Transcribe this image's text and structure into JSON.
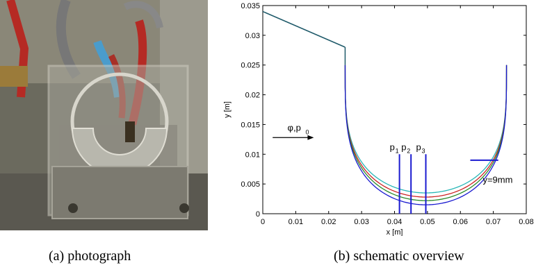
{
  "captions": {
    "a": "(a)  photograph",
    "b": "(b)  schematic overview"
  },
  "chart_data": {
    "type": "line",
    "xlabel": "x [m]",
    "ylabel": "y [m]",
    "xlim": [
      0,
      0.08
    ],
    "ylim": [
      0,
      0.035
    ],
    "x_ticks": [
      "0",
      "0.01",
      "0.02",
      "0.03",
      "0.04",
      "0.05",
      "0.06",
      "0.07",
      "0.08"
    ],
    "y_ticks": [
      "0",
      "0.005",
      "0.01",
      "0.015",
      "0.02",
      "0.025",
      "0.03",
      "0.035"
    ],
    "grid": false,
    "inlet": {
      "x": [
        0,
        0.025
      ],
      "y": [
        0.034,
        0.028
      ]
    },
    "bowls": [
      {
        "color": "#2ab7b7",
        "x_left": 0.025,
        "x_right": 0.074,
        "y_top": 0.025,
        "center_x": 0.0495,
        "y_min": 0.0035
      },
      {
        "color": "#cc2222",
        "x_left": 0.025,
        "x_right": 0.074,
        "y_top": 0.025,
        "center_x": 0.0495,
        "y_min": 0.0028
      },
      {
        "color": "#2a8a2a",
        "x_left": 0.025,
        "x_right": 0.074,
        "y_top": 0.025,
        "center_x": 0.0495,
        "y_min": 0.0022
      },
      {
        "color": "#1a1ad0",
        "x_left": 0.025,
        "x_right": 0.074,
        "y_top": 0.025,
        "center_x": 0.0495,
        "y_min": 0.0015
      }
    ],
    "wall": {
      "x": 0.025,
      "y": [
        0.028,
        0.025
      ]
    },
    "probes": [
      {
        "label": "p",
        "sub": "1",
        "x": 0.0415,
        "y_top": 0.01
      },
      {
        "label": "p",
        "sub": "2",
        "x": 0.045,
        "y_top": 0.01
      },
      {
        "label": "p",
        "sub": "3",
        "x": 0.0495,
        "y_top": 0.01
      }
    ],
    "probe_color": "#1a1ad0",
    "level_marker": {
      "x": [
        0.063,
        0.0715
      ],
      "y": 0.009,
      "label": "y=9mm"
    },
    "inflow": {
      "label": "φ,p",
      "sub": "0",
      "x": [
        0.003,
        0.0155
      ],
      "y": 0.0128
    }
  }
}
